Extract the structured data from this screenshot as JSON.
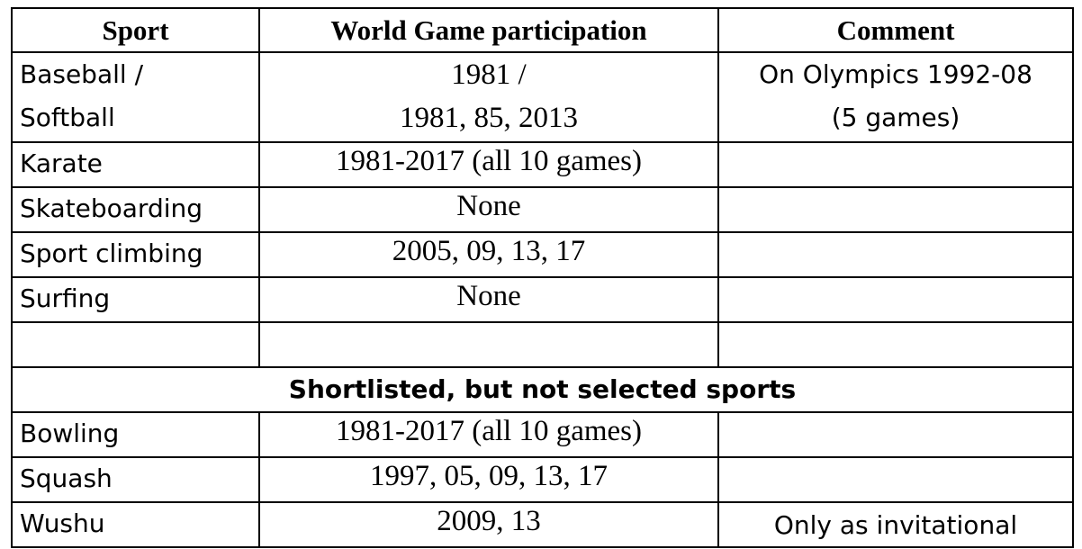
{
  "table": {
    "header": [
      "Sport",
      "World Game participation",
      "Comment"
    ],
    "rows": [
      {
        "sport": [
          "Baseball /",
          "Softball"
        ],
        "participation": [
          "1981 /",
          "1981, 85, 2013"
        ],
        "comment": [
          "On Olympics 1992-08",
          "(5 games)"
        ]
      },
      {
        "sport": "Karate",
        "participation": "1981-2017 (all 10 games)"
      },
      {
        "sport": "Skateboarding",
        "participation": "None"
      },
      {
        "sport": "Sport climbing",
        "participation": "2005, 09, 13, 17"
      },
      {
        "sport": "Surfing",
        "participation": "None"
      }
    ],
    "section": "Shortlisted, but not selected sports",
    "shortlisted_rows": [
      {
        "sport": "Bowling",
        "participation": "1981-2017 (all 10 games)"
      },
      {
        "sport": "Squash",
        "participation": "1997, 05, 09, 13, 17"
      },
      {
        "sport": "Wushu",
        "participation": "2009, 13",
        "comment": "Only as invitational"
      }
    ]
  }
}
